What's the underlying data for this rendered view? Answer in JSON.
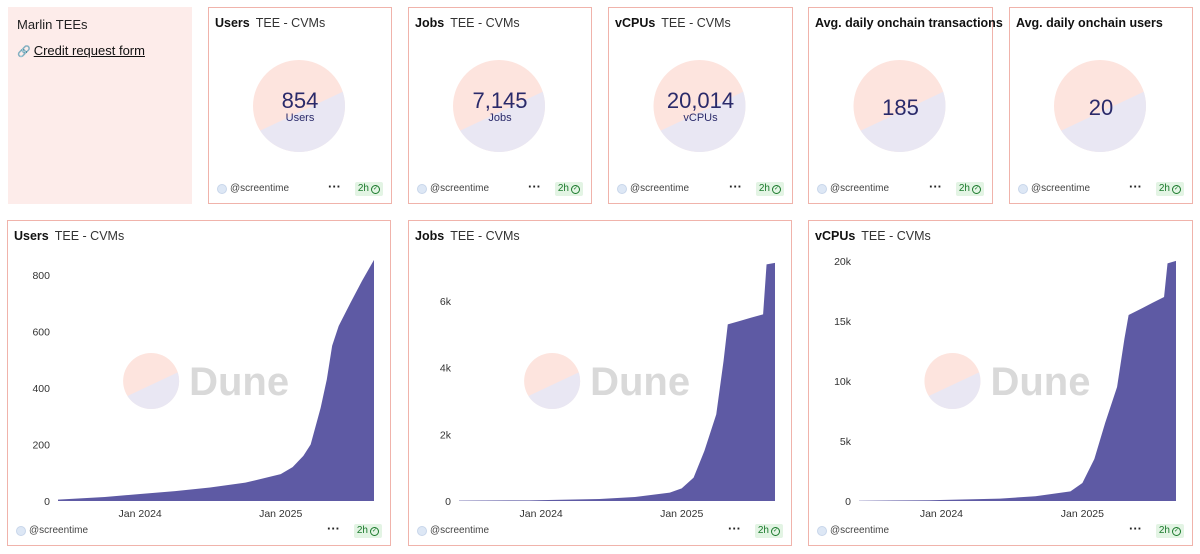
{
  "text_card": {
    "title": "Marlin TEEs",
    "link_icon": "link-icon",
    "link_label": "Credit request form"
  },
  "footer": {
    "handle": "@screentime",
    "more": "···",
    "freshness": "2h",
    "check": "✓"
  },
  "counters": [
    {
      "title": "Users",
      "subtitle": "TEE - CVMs",
      "value": "854",
      "unit": "Users"
    },
    {
      "title": "Jobs",
      "subtitle": "TEE - CVMs",
      "value": "7,145",
      "unit": "Jobs"
    },
    {
      "title": "vCPUs",
      "subtitle": "TEE - CVMs",
      "value": "20,014",
      "unit": "vCPUs"
    },
    {
      "title": "Avg. daily onchain transactions",
      "subtitle": "",
      "value": "185",
      "unit": ""
    },
    {
      "title": "Avg. daily onchain users",
      "subtitle": "",
      "value": "20",
      "unit": ""
    }
  ],
  "watermark": "Dune",
  "colors": {
    "accent": "#5b57a2",
    "card_border": "#f0b3ab",
    "text_card_bg": "#fdecea",
    "fresh_bg": "#e3f4e4",
    "fresh_fg": "#1a7a2b"
  },
  "chart_data": [
    {
      "type": "area",
      "title": "Users",
      "subtitle": "TEE - CVMs",
      "xlabel": "",
      "ylabel": "",
      "ylim": [
        0,
        850
      ],
      "yticks": [
        0,
        200,
        400,
        600,
        800
      ],
      "ytick_labels": [
        "0",
        "200",
        "400",
        "600",
        "800"
      ],
      "xlim": [
        "2023-06-01",
        "2025-09-01"
      ],
      "xticks": [
        "2024-01-01",
        "2025-01-01"
      ],
      "xtick_labels": [
        "Jan 2024",
        "Jan 2025"
      ],
      "grid": false,
      "series": [
        {
          "name": "",
          "x": [
            "2023-06-01",
            "2023-10-01",
            "2024-01-01",
            "2024-04-01",
            "2024-07-01",
            "2024-10-01",
            "2025-01-01",
            "2025-02-01",
            "2025-03-01",
            "2025-03-20",
            "2025-04-15",
            "2025-05-01",
            "2025-05-15",
            "2025-06-01",
            "2025-07-01",
            "2025-08-01",
            "2025-09-01"
          ],
          "y": [
            5,
            14,
            25,
            35,
            48,
            65,
            95,
            120,
            160,
            200,
            330,
            430,
            550,
            620,
            700,
            780,
            854
          ]
        }
      ]
    },
    {
      "type": "area",
      "title": "Jobs",
      "subtitle": "TEE - CVMs",
      "xlabel": "",
      "ylabel": "",
      "ylim": [
        0,
        7200
      ],
      "yticks": [
        0,
        2000,
        4000,
        6000
      ],
      "ytick_labels": [
        "0",
        "2k",
        "4k",
        "6k"
      ],
      "xlim": [
        "2023-06-01",
        "2025-09-01"
      ],
      "xticks": [
        "2024-01-01",
        "2025-01-01"
      ],
      "xtick_labels": [
        "Jan 2024",
        "Jan 2025"
      ],
      "grid": false,
      "series": [
        {
          "name": "",
          "x": [
            "2023-06-01",
            "2023-12-01",
            "2024-06-01",
            "2024-09-01",
            "2024-12-01",
            "2025-01-01",
            "2025-02-01",
            "2025-03-01",
            "2025-04-01",
            "2025-04-20",
            "2025-05-01",
            "2025-06-01",
            "2025-07-01",
            "2025-08-01",
            "2025-08-10",
            "2025-09-01"
          ],
          "y": [
            10,
            20,
            60,
            120,
            250,
            380,
            700,
            1500,
            2600,
            4200,
            5300,
            5400,
            5500,
            5600,
            7100,
            7145
          ]
        }
      ]
    },
    {
      "type": "area",
      "title": "vCPUs",
      "subtitle": "TEE - CVMs",
      "xlabel": "",
      "ylabel": "",
      "ylim": [
        0,
        20000
      ],
      "yticks": [
        0,
        5000,
        10000,
        15000,
        20000
      ],
      "ytick_labels": [
        "0",
        "5k",
        "10k",
        "15k",
        "20k"
      ],
      "xlim": [
        "2023-06-01",
        "2025-09-01"
      ],
      "xticks": [
        "2024-01-01",
        "2025-01-01"
      ],
      "xtick_labels": [
        "Jan 2024",
        "Jan 2025"
      ],
      "grid": false,
      "series": [
        {
          "name": "",
          "x": [
            "2023-06-01",
            "2023-12-01",
            "2024-06-01",
            "2024-09-01",
            "2024-12-01",
            "2025-01-01",
            "2025-02-01",
            "2025-03-01",
            "2025-04-01",
            "2025-04-20",
            "2025-05-01",
            "2025-06-01",
            "2025-07-01",
            "2025-08-01",
            "2025-08-10",
            "2025-09-01"
          ],
          "y": [
            20,
            60,
            200,
            400,
            800,
            1500,
            3500,
            6500,
            9500,
            13500,
            15500,
            16000,
            16500,
            17000,
            19800,
            20014
          ]
        }
      ]
    }
  ]
}
